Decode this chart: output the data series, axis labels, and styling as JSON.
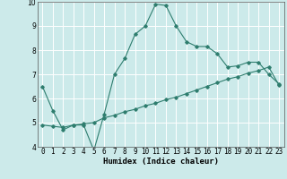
{
  "xlabel": "Humidex (Indice chaleur)",
  "bg_color": "#cceaea",
  "grid_color": "#ffffff",
  "line_color": "#2e7d6e",
  "xlim": [
    -0.5,
    23.5
  ],
  "ylim": [
    4,
    10
  ],
  "yticks": [
    4,
    5,
    6,
    7,
    8,
    9,
    10
  ],
  "xticks": [
    0,
    1,
    2,
    3,
    4,
    5,
    6,
    7,
    8,
    9,
    10,
    11,
    12,
    13,
    14,
    15,
    16,
    17,
    18,
    19,
    20,
    21,
    22,
    23
  ],
  "curve1_x": [
    0,
    1,
    2,
    3,
    4,
    5,
    6,
    7,
    8,
    9,
    10,
    11,
    12,
    13,
    14,
    15,
    16,
    17,
    18,
    19,
    20,
    21,
    22,
    23
  ],
  "curve1_y": [
    6.5,
    5.5,
    4.7,
    4.9,
    4.9,
    3.85,
    5.35,
    7.0,
    7.65,
    8.65,
    9.0,
    9.9,
    9.85,
    9.0,
    8.35,
    8.15,
    8.15,
    7.85,
    7.3,
    7.35,
    7.5,
    7.5,
    7.0,
    6.6
  ],
  "curve2_x": [
    0,
    1,
    2,
    3,
    4,
    5,
    6,
    7,
    8,
    9,
    10,
    11,
    12,
    13,
    14,
    15,
    16,
    17,
    18,
    19,
    20,
    21,
    22,
    23
  ],
  "curve2_y": [
    4.9,
    4.85,
    4.8,
    4.9,
    4.95,
    5.0,
    5.2,
    5.3,
    5.45,
    5.55,
    5.7,
    5.8,
    5.95,
    6.05,
    6.2,
    6.35,
    6.5,
    6.65,
    6.8,
    6.9,
    7.05,
    7.15,
    7.3,
    6.55
  ],
  "tick_fontsize": 5.5,
  "label_fontsize": 6.5,
  "xlabel_fontweight": "bold"
}
